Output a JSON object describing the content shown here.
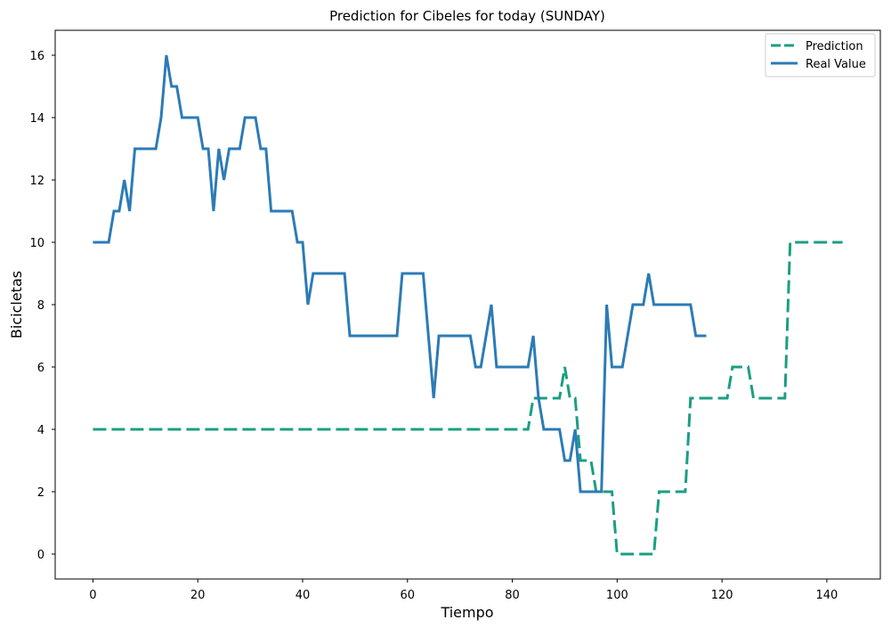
{
  "chart_data": {
    "type": "line",
    "title": "Prediction for Cibeles for today (SUNDAY)",
    "xlabel": "Tiempo",
    "ylabel": "Bicicletas",
    "xlim": [
      -7.2,
      150.2
    ],
    "ylim": [
      -0.8,
      16.8
    ],
    "xticks": [
      0,
      20,
      40,
      60,
      80,
      100,
      120,
      140
    ],
    "yticks": [
      0,
      2,
      4,
      6,
      8,
      10,
      12,
      14,
      16
    ],
    "grid": false,
    "legend_position": "top-right",
    "series": [
      {
        "name": "Prediction",
        "color": "#1b9e83",
        "style": "dashed",
        "points": [
          [
            0,
            4
          ],
          [
            83,
            4
          ],
          [
            84,
            5
          ],
          [
            89,
            5
          ],
          [
            90,
            6
          ],
          [
            91,
            5
          ],
          [
            92,
            5
          ],
          [
            93,
            3
          ],
          [
            95,
            3
          ],
          [
            96,
            2
          ],
          [
            99,
            2
          ],
          [
            100,
            0
          ],
          [
            107,
            0
          ],
          [
            108,
            2
          ],
          [
            113,
            2
          ],
          [
            114,
            5
          ],
          [
            121,
            5
          ],
          [
            122,
            6
          ],
          [
            125,
            6
          ],
          [
            126,
            5
          ],
          [
            132,
            5
          ],
          [
            133,
            10
          ],
          [
            143,
            10
          ]
        ]
      },
      {
        "name": "Real Value",
        "color": "#2c7bb6",
        "style": "solid",
        "points": [
          [
            0,
            10
          ],
          [
            3,
            10
          ],
          [
            4,
            11
          ],
          [
            5,
            11
          ],
          [
            6,
            12
          ],
          [
            7,
            11
          ],
          [
            8,
            13
          ],
          [
            12,
            13
          ],
          [
            13,
            14
          ],
          [
            14,
            16
          ],
          [
            15,
            15
          ],
          [
            16,
            15
          ],
          [
            17,
            14
          ],
          [
            20,
            14
          ],
          [
            21,
            13
          ],
          [
            22,
            13
          ],
          [
            23,
            11
          ],
          [
            24,
            13
          ],
          [
            25,
            12
          ],
          [
            26,
            13
          ],
          [
            28,
            13
          ],
          [
            29,
            14
          ],
          [
            31,
            14
          ],
          [
            32,
            13
          ],
          [
            33,
            13
          ],
          [
            34,
            11
          ],
          [
            38,
            11
          ],
          [
            39,
            10
          ],
          [
            40,
            10
          ],
          [
            41,
            8
          ],
          [
            42,
            9
          ],
          [
            48,
            9
          ],
          [
            49,
            7
          ],
          [
            58,
            7
          ],
          [
            59,
            9
          ],
          [
            63,
            9
          ],
          [
            64,
            7
          ],
          [
            65,
            5
          ],
          [
            66,
            7
          ],
          [
            72,
            7
          ],
          [
            73,
            6
          ],
          [
            74,
            6
          ],
          [
            76,
            8
          ],
          [
            77,
            6
          ],
          [
            83,
            6
          ],
          [
            84,
            7
          ],
          [
            85,
            5
          ],
          [
            86,
            4
          ],
          [
            89,
            4
          ],
          [
            90,
            3
          ],
          [
            91,
            3
          ],
          [
            92,
            4
          ],
          [
            93,
            2
          ],
          [
            97,
            2
          ],
          [
            98,
            8
          ],
          [
            99,
            6
          ],
          [
            101,
            6
          ],
          [
            103,
            8
          ],
          [
            105,
            8
          ],
          [
            106,
            9
          ],
          [
            107,
            8
          ],
          [
            114,
            8
          ],
          [
            115,
            7
          ],
          [
            117,
            7
          ]
        ]
      }
    ]
  }
}
